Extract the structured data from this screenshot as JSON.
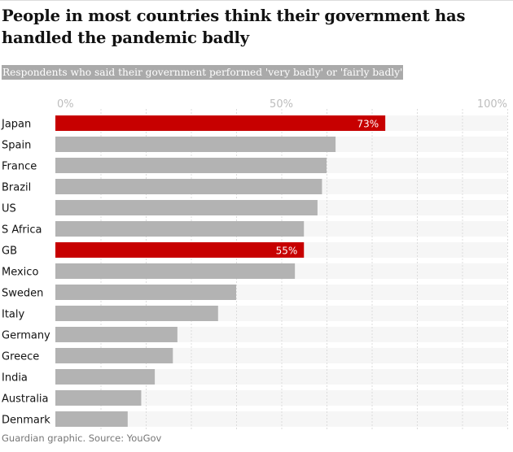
{
  "title": "People in most countries think their government has handled the pandemic badly",
  "subtitle": "Respondents who said their government performed 'very badly' or 'fairly badly'",
  "source": "Guardian graphic. Source: YouGov",
  "colors": {
    "highlight": "#c70000",
    "bar": "#b3b3b3",
    "track": "#f6f6f6",
    "grid": "#dcdcdc"
  },
  "chart_data": {
    "type": "bar",
    "orientation": "horizontal",
    "title": "People in most countries think their government has handled the pandemic badly",
    "subtitle": "Respondents who said their government performed 'very badly' or 'fairly badly'",
    "xlim": [
      0,
      100
    ],
    "ticks": [
      0,
      50,
      100
    ],
    "tick_labels": [
      "0%",
      "50%",
      "100%"
    ],
    "grid": true,
    "categories": [
      "Japan",
      "Spain",
      "France",
      "Brazil",
      "US",
      "S Africa",
      "GB",
      "Mexico",
      "Sweden",
      "Italy",
      "Germany",
      "Greece",
      "India",
      "Australia",
      "Denmark"
    ],
    "values": [
      73,
      62,
      60,
      59,
      58,
      55,
      55,
      53,
      40,
      36,
      27,
      26,
      22,
      19,
      16
    ],
    "highlighted": [
      "Japan",
      "GB"
    ],
    "data_labels": {
      "Japan": "73%",
      "GB": "55%"
    }
  }
}
